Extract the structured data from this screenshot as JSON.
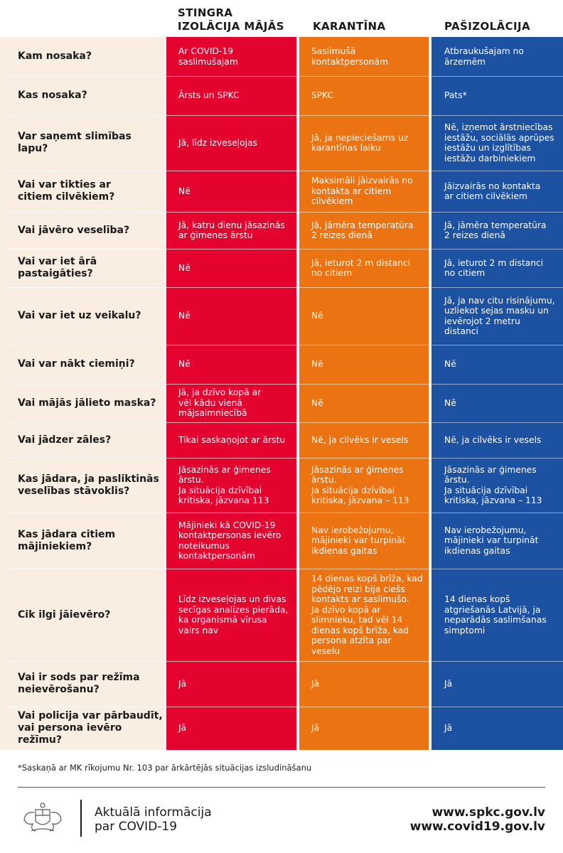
{
  "headers": {
    "col1": "STINGRA\nIZOLĀCIJA MĀJĀS",
    "col2": "KARANTĪNA",
    "col3": "PAŠIZOLĀCIJA"
  },
  "colors": {
    "red": "#e4032e",
    "orange": "#ec7311",
    "blue": "#1d52a3",
    "question_bg": "#faeee3"
  },
  "rows": [
    {
      "question": "Kam nosaka?",
      "red": "Ar COVID-19\nsaslimušajam",
      "orange": "Saslimušā\nkontaktpersonām",
      "blue": "Atbraukušajam no\nārzemēm"
    },
    {
      "question": "Kas nosaka?",
      "red": "Ārsts un SPKC",
      "orange": "SPKC",
      "blue": "Pats*"
    },
    {
      "question": "Var saņemt slimības lapu?",
      "red": "Jā, līdz izveseļojas",
      "orange": "Jā, ja nepieciešams uz\nkarantīnas laiku",
      "blue": "Nē, izņemot ārstniecības\niestāžu, sociālās aprūpes\niestāžu un izglītības\niestāžu darbiniekiem"
    },
    {
      "question": "Vai var tikties ar\ncitiem cilvēkiem?",
      "red": "Nē",
      "orange": "Maksimāli jāizvairās no\nkontakta ar citiem\ncilvēkiem",
      "blue": "Jāizvairās no kontakta\nar citiem cilvēkiem"
    },
    {
      "question": "Vai jāvēro veselība?",
      "red": "Jā, katru dienu jāsazinās\nar ģimenes ārstu",
      "orange": "Jā, jāmēra temperatūra\n2 reizes dienā",
      "blue": "Jā, jāmēra temperatūra\n2 reizes dienā"
    },
    {
      "question": "Vai var iet ārā pastaigāties?",
      "red": "Nē",
      "orange": "Jā, ieturot 2 m distanci\nno citiem",
      "blue": "Jā, ieturot 2 m distanci\nno citiem"
    },
    {
      "question": "Vai var iet uz veikalu?",
      "red": "Nē",
      "orange": "Nē",
      "blue": "Jā, ja nav citu risinājumu,\nuzliekot sejas masku un\nievērojot 2 metru\ndistanci"
    },
    {
      "question": "Vai var nākt ciemiņi?",
      "red": "Nē",
      "orange": "Nē",
      "blue": "Nē"
    },
    {
      "question": "Vai mājās jālieto maska?",
      "red": "Jā, ja dzīvo kopā ar\nvēl kādu vienā\nmājsaimniecībā",
      "orange": "Nē",
      "blue": "Nē"
    },
    {
      "question": "Vai jādzer zāles?",
      "red": "Tikai saskaņojot ar ārstu",
      "orange": "Nē, ja cilvēks ir vesels",
      "blue": "Nē, ja cilvēks ir vesels"
    },
    {
      "question": "Kas jādara, ja pasliktinās\nveselības stāvoklis?",
      "red": "Jāsazinās ar ģimenes\nārstu.\nJa situācija dzīvībai\nkritiska, jāzvana 113",
      "orange": "Jāsazinās ar ģimenes\nārstu.\nJa situācija dzīvībai\nkritiska, jāzvana – 113",
      "blue": "Jāsazinās ar ģimenes\nārstu.\nJa situācija dzīvībai\nkritiska, jāzvana – 113"
    },
    {
      "question": "Kas jādara citiem\nmājiniekiem?",
      "red": "Mājinieki kā COVID-19\nkontaktpersonas ievēro\nnoteikumus\nkontaktpersonām",
      "orange": "Nav ierobežojumu,\nmājinieki var turpināt\nikdienas gaitas",
      "blue": "Nav ierobežojumu,\nmājinieki var turpināt\nikdienas gaitas"
    },
    {
      "question": "Cik ilgi jāievēro?",
      "red": "Līdz izveseļojas un divas\nsecīgas analīzes pierāda,\nka organismā vīrusa\nvairs nav",
      "orange": "14 dienas kopš brīža, kad\npēdējo reizi bija ciešs\nkontakts ar saslimušo.\nJa dzīvo kopā ar\nslimnieku, tad vēl 14\ndienas kopš brīža, kad\npersona atzīta par\nveselu",
      "blue": "14 dienas kopš\natgriešanās Latvijā, ja\nneparādās saslimšanas\nsimptomi"
    },
    {
      "question": "Vai ir sods par režīma\nneievērošanu?",
      "red": "Jā",
      "orange": "Jā",
      "blue": "Jā"
    },
    {
      "question": "Vai policija var pārbaudīt,\nvai persona ievēro režīmu?",
      "red": "Jā",
      "orange": "Jā",
      "blue": "Jā"
    }
  ],
  "footnote": "*Saskaņā ar MK rīkojumu Nr. 103 par ārkārtējās situācijas izsludināšanu",
  "footer": {
    "info": "Aktuālā informācija\npar COVID-19",
    "link1": "www.spkc.gov.lv",
    "link2": "www.covid19.gov.lv",
    "crest_icon": "latvia-coat-of-arms-icon"
  }
}
